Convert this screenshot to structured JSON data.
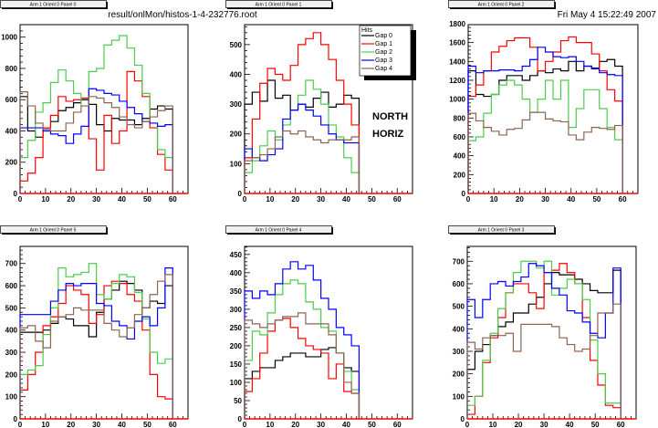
{
  "canvas": {
    "file_title": "result/onlMon/histos-1-4-232776.root",
    "date": "Fri May  4 15:22:49 2007"
  },
  "legend": {
    "title": "Hits",
    "entries": [
      "Gap 0",
      "Gap 1",
      "Gap 2",
      "Gap 3",
      "Gap 4"
    ],
    "placement": "top-right of panel 1"
  },
  "annotations": [
    "NORTH",
    "HORIZ"
  ],
  "colors": {
    "Gap 0": "#000000",
    "Gap 1": "#ff0000",
    "Gap 2": "#4ccc4c",
    "Gap 3": "#0000ff",
    "Gap 4": "#8c6450",
    "title_box": "#f0f0f0"
  },
  "chart_data": [
    {
      "type": "histogram",
      "title": "Arm 1 Orient 0 Panel 0",
      "xlim": [
        0,
        66
      ],
      "ylim": [
        0,
        1080
      ],
      "xticks": [
        0,
        10,
        20,
        30,
        40,
        50,
        60
      ],
      "yticks": [
        0,
        200,
        400,
        600,
        800,
        1000
      ],
      "bin_width": 3,
      "series": [
        {
          "name": "Gap 0",
          "values": [
            620,
            400,
            360,
            420,
            460,
            530,
            550,
            580,
            600,
            570,
            440,
            400,
            480,
            470,
            470,
            440,
            480,
            540,
            560,
            540
          ]
        },
        {
          "name": "Gap 1",
          "values": [
            80,
            130,
            230,
            420,
            500,
            620,
            590,
            600,
            610,
            350,
            150,
            500,
            320,
            400,
            780,
            720,
            620,
            420,
            250,
            150
          ]
        },
        {
          "name": "Gap 2",
          "values": [
            230,
            340,
            520,
            580,
            710,
            790,
            720,
            640,
            560,
            780,
            800,
            950,
            980,
            1010,
            930,
            820,
            640,
            450,
            280,
            230
          ]
        },
        {
          "name": "Gap 3",
          "values": [
            420,
            420,
            420,
            400,
            380,
            370,
            320,
            380,
            430,
            670,
            660,
            640,
            630,
            590,
            550,
            510,
            460,
            450,
            430,
            440
          ]
        },
        {
          "name": "Gap 4",
          "values": [
            650,
            560,
            450,
            410,
            400,
            400,
            450,
            520,
            560,
            620,
            610,
            580,
            550,
            490,
            440,
            420,
            460,
            490,
            530,
            560
          ]
        }
      ]
    },
    {
      "type": "histogram",
      "title": "Arm 1 Orient 0 Panel 1",
      "xlim": [
        0,
        66
      ],
      "ylim": [
        0,
        567
      ],
      "xticks": [
        0,
        10,
        20,
        30,
        40,
        50,
        60
      ],
      "yticks": [
        0,
        100,
        200,
        300,
        400,
        500
      ],
      "bin_width": 3,
      "series": [
        {
          "name": "Gap 0",
          "values": [
            300,
            340,
            310,
            380,
            320,
            330,
            280,
            300,
            290,
            320,
            340,
            290,
            300,
            330,
            320
          ]
        },
        {
          "name": "Gap 1",
          "values": [
            120,
            250,
            370,
            420,
            400,
            380,
            430,
            500,
            520,
            540,
            500,
            450,
            380,
            300,
            230
          ]
        },
        {
          "name": "Gap 2",
          "values": [
            70,
            110,
            160,
            210,
            180,
            230,
            280,
            330,
            380,
            350,
            300,
            230,
            190,
            120,
            70
          ]
        },
        {
          "name": "Gap 3",
          "values": [
            150,
            120,
            110,
            130,
            150,
            250,
            280,
            300,
            280,
            260,
            230,
            200,
            180,
            170,
            170
          ]
        },
        {
          "name": "Gap 4",
          "values": [
            110,
            120,
            130,
            150,
            190,
            210,
            200,
            210,
            190,
            180,
            170,
            180,
            180,
            180,
            190
          ]
        }
      ]
    },
    {
      "type": "histogram",
      "title": "Arm 1 Orient 0 Panel 2",
      "xlim": [
        0,
        66
      ],
      "ylim": [
        0,
        1790
      ],
      "xticks": [
        0,
        10,
        20,
        30,
        40,
        50,
        60
      ],
      "yticks": [
        0,
        200,
        400,
        600,
        800,
        1000,
        1200,
        1400,
        1600,
        1800
      ],
      "bin_width": 3,
      "series": [
        {
          "name": "Gap 0",
          "values": [
            1300,
            1050,
            1030,
            1050,
            1200,
            1250,
            1250,
            1200,
            1250,
            1300,
            1280,
            1320,
            1300,
            1400,
            1300,
            1350,
            1330,
            1400,
            1420,
            1350
          ]
        },
        {
          "name": "Gap 1",
          "values": [
            1030,
            1150,
            1300,
            1500,
            1560,
            1620,
            1650,
            1650,
            1550,
            1300,
            1400,
            1500,
            1620,
            1660,
            1600,
            1600,
            1480,
            1300,
            1100,
            980
          ]
        },
        {
          "name": "Gap 2",
          "values": [
            560,
            600,
            850,
            1050,
            1150,
            1200,
            1150,
            1000,
            860,
            1000,
            1200,
            1000,
            1200,
            700,
            900,
            1100,
            1100,
            900,
            700,
            570
          ]
        },
        {
          "name": "Gap 3",
          "values": [
            1350,
            1280,
            1300,
            1300,
            1310,
            1310,
            1300,
            1350,
            1420,
            1550,
            1500,
            1450,
            1440,
            1450,
            1400,
            1350,
            1320,
            1280,
            1260,
            1250
          ]
        },
        {
          "name": "Gap 4",
          "values": [
            850,
            770,
            700,
            660,
            620,
            680,
            690,
            780,
            860,
            860,
            790,
            770,
            760,
            620,
            570,
            650,
            700,
            690,
            680,
            720
          ]
        }
      ]
    },
    {
      "type": "histogram",
      "title": "Arm 1 Orient 0 Panel 5",
      "xlim": [
        0,
        66
      ],
      "ylim": [
        0,
        777
      ],
      "xticks": [
        0,
        10,
        20,
        30,
        40,
        50,
        60
      ],
      "yticks": [
        0,
        100,
        200,
        300,
        400,
        500,
        600,
        700
      ],
      "bin_width": 3,
      "series": [
        {
          "name": "Gap 0",
          "values": [
            390,
            390,
            390,
            400,
            430,
            460,
            450,
            420,
            420,
            370,
            480,
            540,
            580,
            620,
            610,
            580,
            500,
            530,
            520,
            600
          ]
        },
        {
          "name": "Gap 1",
          "values": [
            130,
            200,
            300,
            420,
            460,
            520,
            600,
            580,
            560,
            430,
            470,
            600,
            620,
            610,
            560,
            530,
            400,
            200,
            100,
            90
          ]
        },
        {
          "name": "Gap 2",
          "values": [
            200,
            220,
            240,
            380,
            500,
            680,
            640,
            650,
            660,
            700,
            560,
            540,
            610,
            650,
            640,
            570,
            450,
            300,
            250,
            270
          ]
        },
        {
          "name": "Gap 3",
          "values": [
            470,
            470,
            470,
            470,
            530,
            580,
            610,
            600,
            610,
            610,
            520,
            510,
            440,
            420,
            360,
            440,
            460,
            420,
            500,
            680
          ]
        },
        {
          "name": "Gap 4",
          "values": [
            410,
            420,
            350,
            320,
            440,
            460,
            470,
            500,
            490,
            490,
            490,
            430,
            400,
            370,
            410,
            470,
            500,
            560,
            620,
            650
          ]
        }
      ]
    },
    {
      "type": "histogram",
      "title": "Arm 1 Orient 0 Panel 4",
      "xlim": [
        0,
        66
      ],
      "ylim": [
        0,
        472
      ],
      "xticks": [
        0,
        10,
        20,
        30,
        40,
        50,
        60
      ],
      "yticks": [
        0,
        50,
        100,
        150,
        200,
        250,
        300,
        350,
        400,
        450
      ],
      "bin_width": 3,
      "series": [
        {
          "name": "Gap 0",
          "values": [
            110,
            130,
            140,
            140,
            160,
            170,
            180,
            180,
            170,
            170,
            190,
            195,
            180,
            140,
            130
          ]
        },
        {
          "name": "Gap 1",
          "values": [
            75,
            110,
            180,
            240,
            270,
            275,
            250,
            220,
            200,
            190,
            180,
            110,
            150,
            75,
            70
          ]
        },
        {
          "name": "Gap 2",
          "values": [
            160,
            240,
            230,
            290,
            340,
            370,
            380,
            370,
            320,
            300,
            250,
            240,
            180,
            130,
            80
          ]
        },
        {
          "name": "Gap 3",
          "values": [
            350,
            330,
            350,
            340,
            370,
            410,
            430,
            410,
            420,
            380,
            330,
            300,
            250,
            230,
            200
          ]
        },
        {
          "name": "Gap 4",
          "values": [
            270,
            260,
            250,
            260,
            270,
            280,
            280,
            290,
            260,
            260,
            260,
            230,
            180,
            100,
            70
          ]
        }
      ]
    },
    {
      "type": "histogram",
      "title": "Arm 1 Orient 0 Panel 3",
      "xlim": [
        0,
        66
      ],
      "ylim": [
        0,
        766
      ],
      "xticks": [
        0,
        10,
        20,
        30,
        40,
        50,
        60
      ],
      "yticks": [
        0,
        100,
        200,
        300,
        400,
        500,
        600,
        700
      ],
      "bin_width": 3,
      "series": [
        {
          "name": "Gap 0",
          "values": [
            220,
            300,
            330,
            370,
            410,
            430,
            470,
            470,
            510,
            540,
            600,
            650,
            640,
            640,
            620,
            600,
            570,
            560,
            560,
            660
          ]
        },
        {
          "name": "Gap 1",
          "values": [
            20,
            100,
            250,
            360,
            450,
            560,
            600,
            600,
            560,
            490,
            650,
            660,
            690,
            650,
            600,
            450,
            260,
            150,
            60,
            50
          ]
        },
        {
          "name": "Gap 2",
          "values": [
            60,
            100,
            260,
            380,
            490,
            560,
            650,
            700,
            700,
            670,
            700,
            550,
            580,
            620,
            600,
            530,
            350,
            200,
            70,
            70
          ]
        },
        {
          "name": "Gap 3",
          "values": [
            530,
            450,
            530,
            600,
            610,
            590,
            610,
            630,
            690,
            680,
            650,
            580,
            550,
            480,
            470,
            430,
            380,
            360,
            470,
            670
          ]
        },
        {
          "name": "Gap 4",
          "values": [
            340,
            310,
            360,
            370,
            370,
            380,
            300,
            420,
            420,
            420,
            420,
            410,
            360,
            330,
            300,
            310,
            370,
            470,
            470,
            510
          ]
        }
      ]
    }
  ]
}
